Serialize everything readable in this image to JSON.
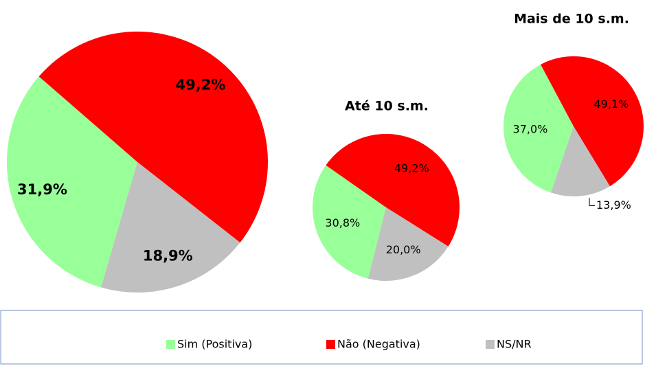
{
  "chart_data": [
    {
      "type": "pie",
      "title": null,
      "categories": [
        "Sim (Positiva)",
        "Não (Negativa)",
        "NS/NR"
      ],
      "colors": [
        "#99ff99",
        "#ff0000",
        "#c0c0c0"
      ],
      "values": [
        31.9,
        49.2,
        18.9
      ],
      "value_labels": [
        "31,9%",
        "49,2%",
        "18,9%"
      ]
    },
    {
      "type": "pie",
      "title": "Até 10 s.m.",
      "values": [
        30.8,
        49.2,
        20.0
      ],
      "value_labels": [
        "30,8%",
        "49,2%",
        "20,0%"
      ]
    },
    {
      "type": "pie",
      "title": "Mais de 10 s.m.",
      "values": [
        37.0,
        49.1,
        13.9
      ],
      "value_labels": [
        "37,0%",
        "49,1%",
        "13,9%"
      ]
    }
  ]
}
